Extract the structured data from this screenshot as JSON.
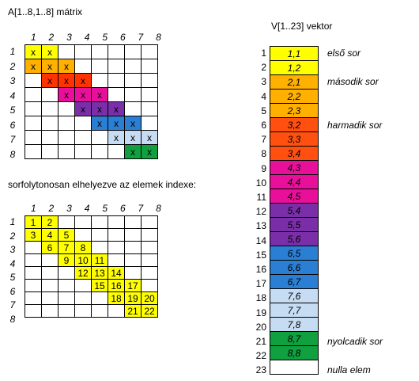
{
  "title_matrix": "A[1..8,1..8] mátrix",
  "title_vector": "V[1..23] vektor",
  "title_index": "sorfolytonosan elhelyezve az elemek indexe:",
  "col_headers": [
    "1",
    "2",
    "3",
    "4",
    "5",
    "6",
    "7",
    "8"
  ],
  "row_headers": [
    "1",
    "2",
    "3",
    "4",
    "5",
    "6",
    "7",
    "8"
  ],
  "matrix_rows": [
    [
      {
        "v": "x",
        "c": "#ffff00"
      },
      {
        "v": "x",
        "c": "#ffff00"
      },
      {
        "v": "",
        "c": ""
      },
      {
        "v": "",
        "c": ""
      },
      {
        "v": "",
        "c": ""
      },
      {
        "v": "",
        "c": ""
      },
      {
        "v": "",
        "c": ""
      },
      {
        "v": "",
        "c": ""
      }
    ],
    [
      {
        "v": "x",
        "c": "#ffb000"
      },
      {
        "v": "x",
        "c": "#ffb000"
      },
      {
        "v": "x",
        "c": "#ffb000"
      },
      {
        "v": "",
        "c": ""
      },
      {
        "v": "",
        "c": ""
      },
      {
        "v": "",
        "c": ""
      },
      {
        "v": "",
        "c": ""
      },
      {
        "v": "",
        "c": ""
      }
    ],
    [
      {
        "v": "",
        "c": ""
      },
      {
        "v": "x",
        "c": "#ff3300"
      },
      {
        "v": "x",
        "c": "#ff3300"
      },
      {
        "v": "x",
        "c": "#ff3300"
      },
      {
        "v": "",
        "c": ""
      },
      {
        "v": "",
        "c": ""
      },
      {
        "v": "",
        "c": ""
      },
      {
        "v": "",
        "c": ""
      }
    ],
    [
      {
        "v": "",
        "c": ""
      },
      {
        "v": "",
        "c": ""
      },
      {
        "v": "x",
        "c": "#e8109a"
      },
      {
        "v": "x",
        "c": "#e8109a"
      },
      {
        "v": "x",
        "c": "#e8109a"
      },
      {
        "v": "",
        "c": ""
      },
      {
        "v": "",
        "c": ""
      },
      {
        "v": "",
        "c": ""
      }
    ],
    [
      {
        "v": "",
        "c": ""
      },
      {
        "v": "",
        "c": ""
      },
      {
        "v": "",
        "c": ""
      },
      {
        "v": "x",
        "c": "#7a2ea8"
      },
      {
        "v": "x",
        "c": "#7a2ea8"
      },
      {
        "v": "x",
        "c": "#7a2ea8"
      },
      {
        "v": "",
        "c": ""
      },
      {
        "v": "",
        "c": ""
      }
    ],
    [
      {
        "v": "",
        "c": ""
      },
      {
        "v": "",
        "c": ""
      },
      {
        "v": "",
        "c": ""
      },
      {
        "v": "",
        "c": ""
      },
      {
        "v": "x",
        "c": "#2a7fd4"
      },
      {
        "v": "x",
        "c": "#2a7fd4"
      },
      {
        "v": "x",
        "c": "#2a7fd4"
      },
      {
        "v": "",
        "c": ""
      }
    ],
    [
      {
        "v": "",
        "c": ""
      },
      {
        "v": "",
        "c": ""
      },
      {
        "v": "",
        "c": ""
      },
      {
        "v": "",
        "c": ""
      },
      {
        "v": "",
        "c": ""
      },
      {
        "v": "x",
        "c": "#c6dcf2"
      },
      {
        "v": "x",
        "c": "#c6dcf2"
      },
      {
        "v": "x",
        "c": "#c6dcf2"
      }
    ],
    [
      {
        "v": "",
        "c": ""
      },
      {
        "v": "",
        "c": ""
      },
      {
        "v": "",
        "c": ""
      },
      {
        "v": "",
        "c": ""
      },
      {
        "v": "",
        "c": ""
      },
      {
        "v": "",
        "c": ""
      },
      {
        "v": "x",
        "c": "#10a040"
      },
      {
        "v": "x",
        "c": "#10a040"
      }
    ]
  ],
  "index_rows": [
    [
      "1",
      "2",
      "",
      "",
      "",
      "",
      "",
      ""
    ],
    [
      "3",
      "4",
      "5",
      "",
      "",
      "",
      "",
      ""
    ],
    [
      "",
      "6",
      "7",
      "8",
      "",
      "",
      "",
      ""
    ],
    [
      "",
      "",
      "9",
      "10",
      "11",
      "",
      "",
      ""
    ],
    [
      "",
      "",
      "",
      "12",
      "13",
      "14",
      "",
      ""
    ],
    [
      "",
      "",
      "",
      "",
      "15",
      "16",
      "17",
      ""
    ],
    [
      "",
      "",
      "",
      "",
      "",
      "18",
      "19",
      "20"
    ],
    [
      "",
      "",
      "",
      "",
      "",
      "",
      "21",
      "22"
    ]
  ],
  "index_color": "#ffff00",
  "vector": [
    {
      "i": "1",
      "v": "1,1",
      "c": "#ffff00"
    },
    {
      "i": "2",
      "v": "1,2",
      "c": "#ffff00"
    },
    {
      "i": "3",
      "v": "2,1",
      "c": "#ffb000"
    },
    {
      "i": "4",
      "v": "2,2",
      "c": "#ffb000"
    },
    {
      "i": "5",
      "v": "2,3",
      "c": "#ffb000"
    },
    {
      "i": "6",
      "v": "3,2",
      "c": "#ff5010"
    },
    {
      "i": "7",
      "v": "3,3",
      "c": "#ff5010"
    },
    {
      "i": "8",
      "v": "3,4",
      "c": "#ff5010"
    },
    {
      "i": "9",
      "v": "4,3",
      "c": "#e8109a"
    },
    {
      "i": "10",
      "v": "4,4",
      "c": "#e8109a"
    },
    {
      "i": "11",
      "v": "4,5",
      "c": "#e8109a"
    },
    {
      "i": "12",
      "v": "5,4",
      "c": "#7a2ea8"
    },
    {
      "i": "13",
      "v": "5,5",
      "c": "#7a2ea8"
    },
    {
      "i": "14",
      "v": "5,6",
      "c": "#7a2ea8"
    },
    {
      "i": "15",
      "v": "6,5",
      "c": "#2a7fd4"
    },
    {
      "i": "16",
      "v": "6,6",
      "c": "#2a7fd4"
    },
    {
      "i": "17",
      "v": "6,7",
      "c": "#2a7fd4"
    },
    {
      "i": "18",
      "v": "7,6",
      "c": "#c6dcf2"
    },
    {
      "i": "19",
      "v": "7,7",
      "c": "#c6dcf2"
    },
    {
      "i": "20",
      "v": "7,8",
      "c": "#c6dcf2"
    },
    {
      "i": "21",
      "v": "8,7",
      "c": "#10a040"
    },
    {
      "i": "22",
      "v": "8,8",
      "c": "#10a040"
    },
    {
      "i": "23",
      "v": "",
      "c": "#ffffff"
    }
  ],
  "notes": [
    {
      "row": 1,
      "text": "első sor"
    },
    {
      "row": 3,
      "text": "második sor"
    },
    {
      "row": 6,
      "text": "harmadik sor"
    },
    {
      "row": 21,
      "text": "nyolcadik sor"
    },
    {
      "row": 23,
      "text": "nulla elem"
    }
  ]
}
